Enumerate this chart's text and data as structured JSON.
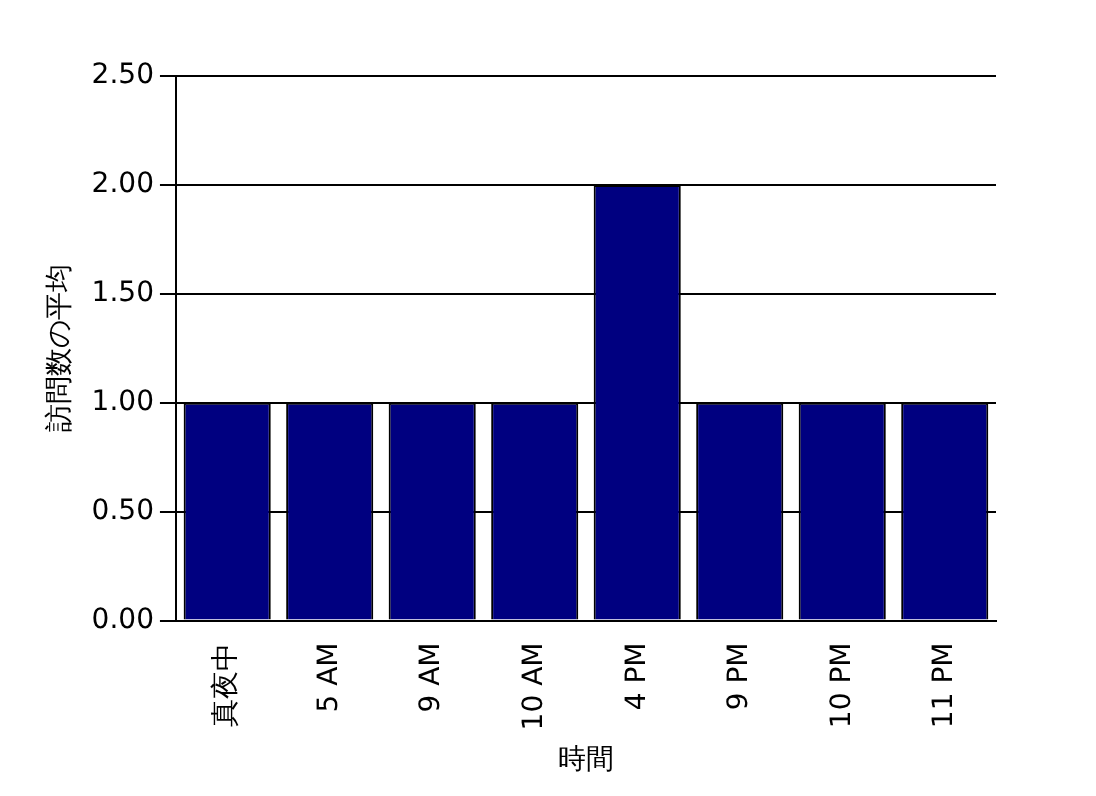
{
  "chart_data": {
    "type": "bar",
    "xlabel": "時間",
    "ylabel": "訪問数の平均",
    "categories": [
      "真夜中",
      "5 AM",
      "9 AM",
      "10 AM",
      "4 PM",
      "9 PM",
      "10 PM",
      "11 PM"
    ],
    "values": [
      1,
      1,
      1,
      1,
      2,
      1,
      1,
      1
    ],
    "color": "#000080",
    "ylim": [
      0,
      2.5
    ],
    "yticks": [
      {
        "value": 0,
        "label": "0.00"
      },
      {
        "value": 0.5,
        "label": "0.50"
      },
      {
        "value": 1,
        "label": "1.00"
      },
      {
        "value": 1.5,
        "label": "1.50"
      },
      {
        "value": 2,
        "label": "2.00"
      },
      {
        "value": 2.5,
        "label": "2.50"
      }
    ],
    "grid": "y",
    "legend": false
  }
}
